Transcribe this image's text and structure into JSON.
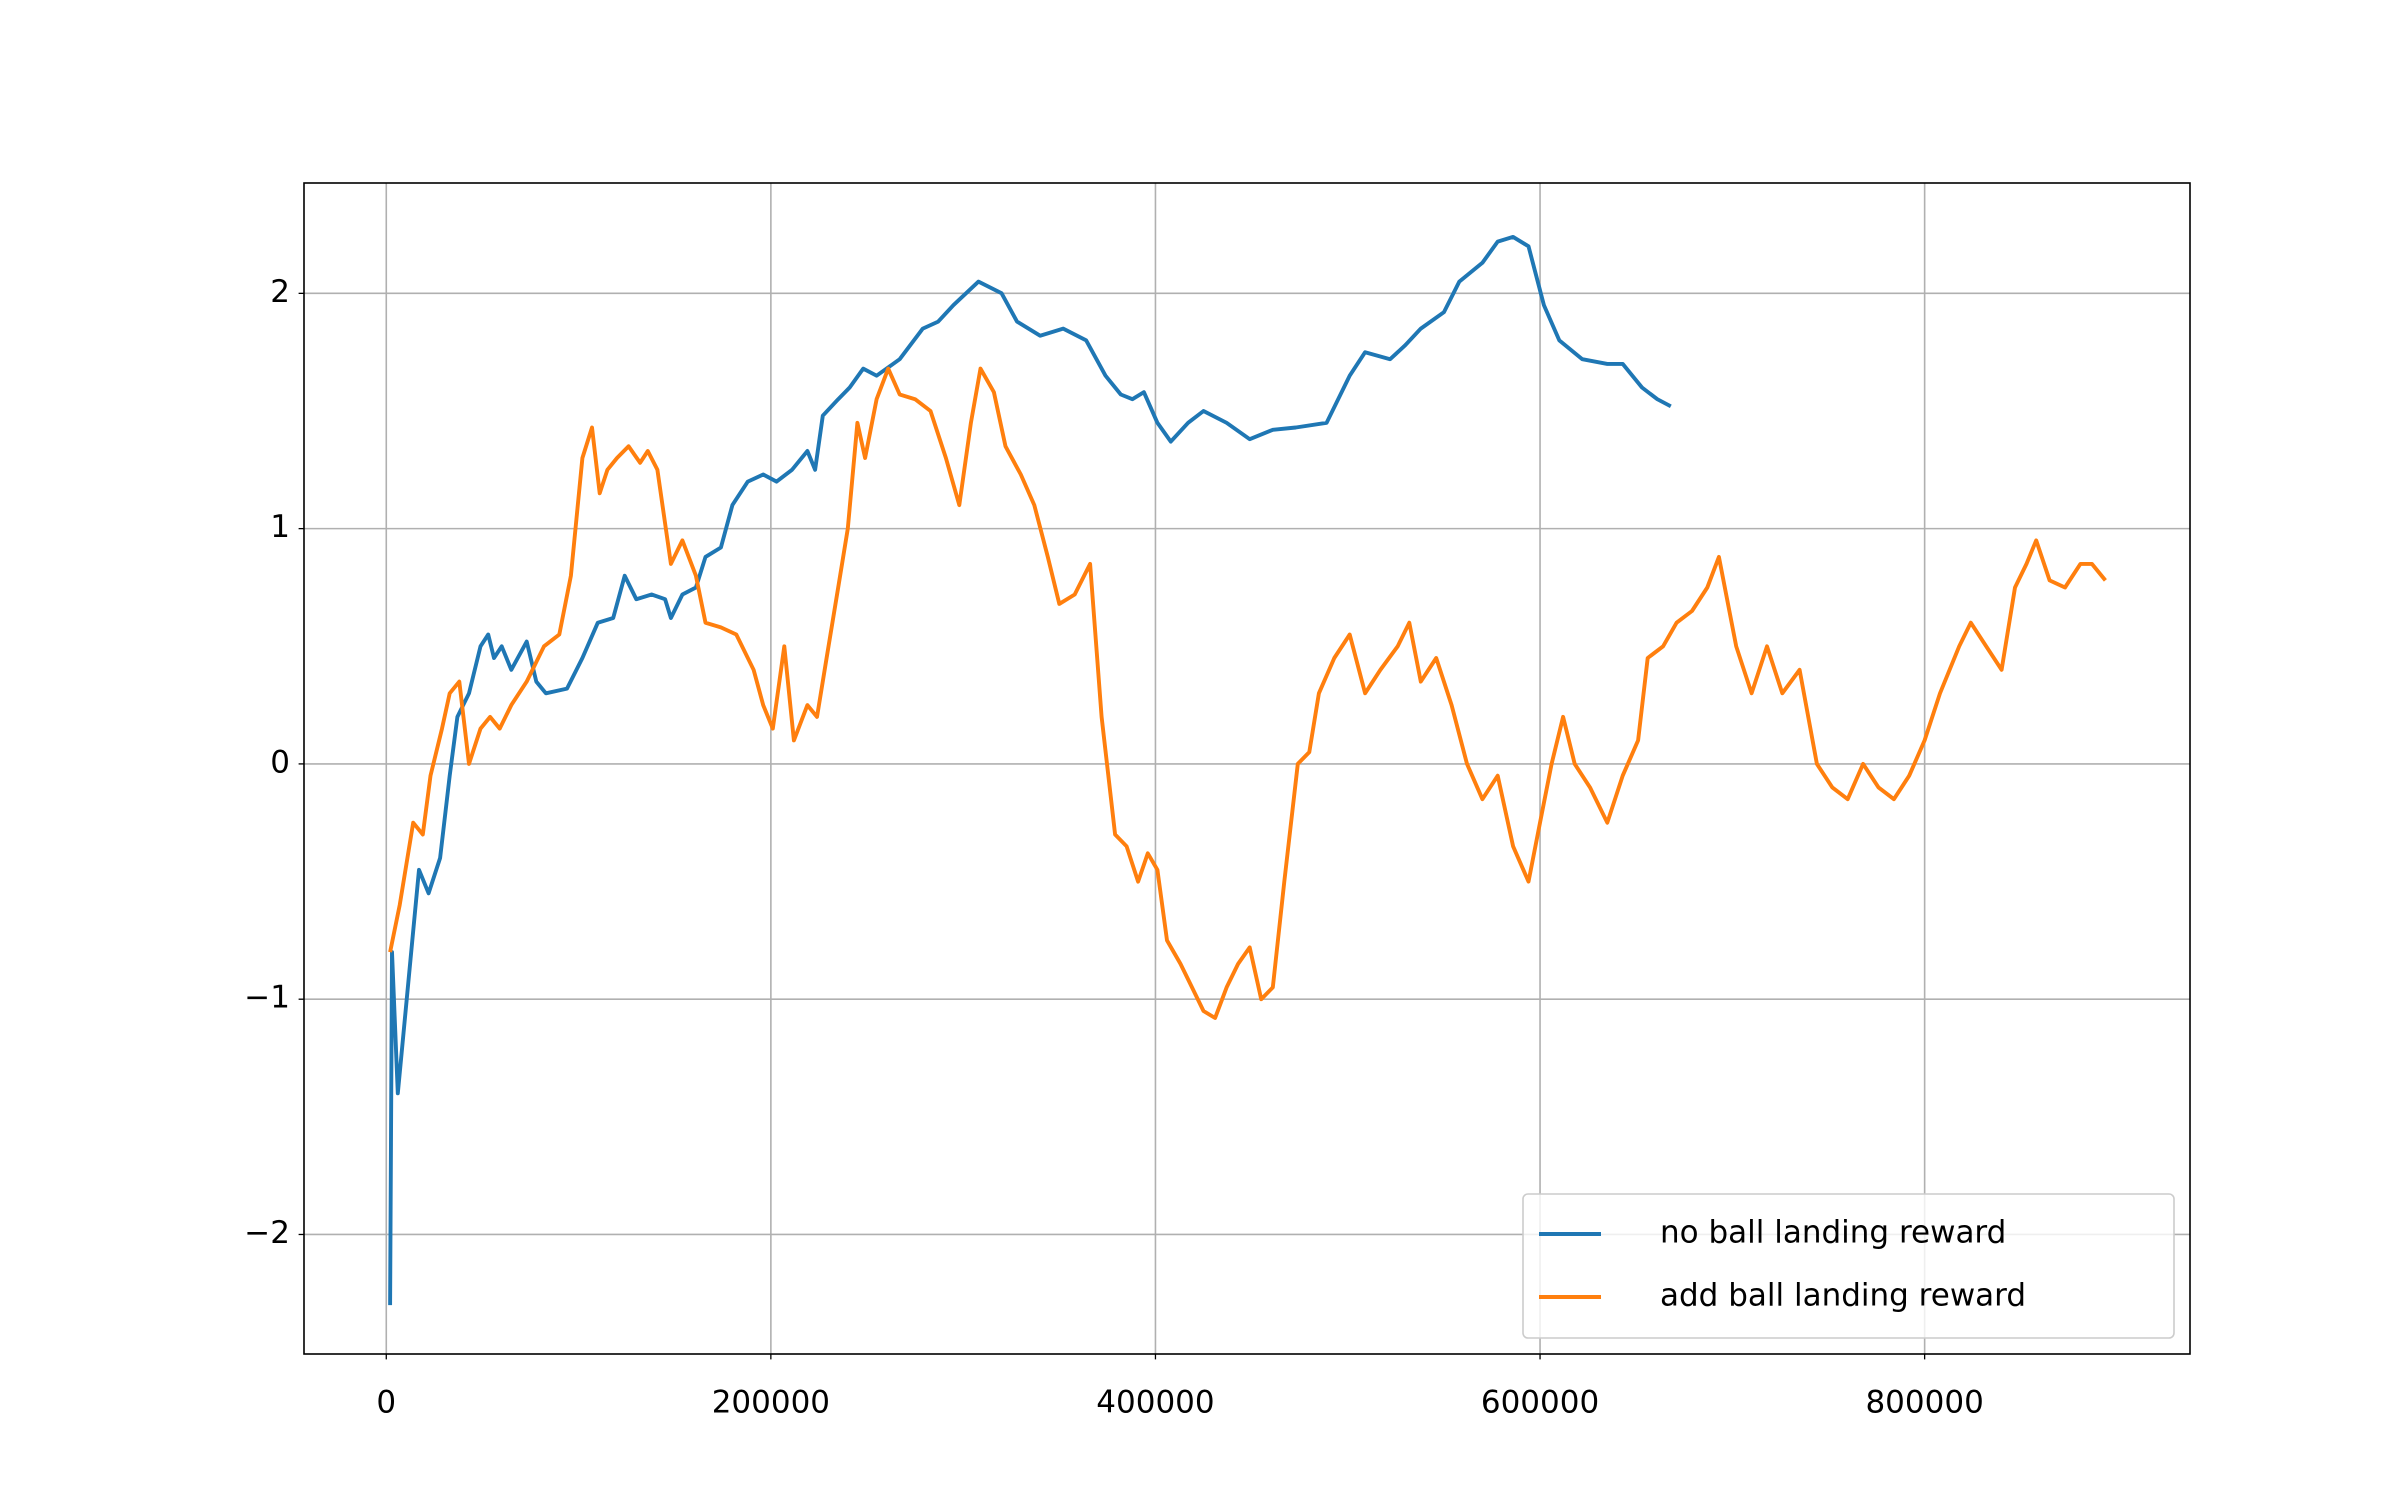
{
  "chart_data": {
    "type": "line",
    "xlim": [
      -42786,
      938000
    ],
    "ylim": [
      -2.508,
      2.469
    ],
    "xticks": [
      0,
      200000,
      400000,
      600000,
      800000
    ],
    "yticks": [
      {
        "value": -2,
        "label": "−2"
      },
      {
        "value": -1,
        "label": "−1"
      },
      0,
      1,
      2
    ],
    "grid": true,
    "legend": "lower right",
    "series": [
      {
        "name": "no ball landing reward",
        "color": "#1f77b4",
        "x": [
          2000,
          3000,
          6000,
          17000,
          22000,
          28000,
          33000,
          37000,
          43000,
          49000,
          53000,
          56000,
          60000,
          65000,
          73000,
          78000,
          83000,
          94000,
          102000,
          110000,
          118000,
          124000,
          130000,
          138000,
          145000,
          148000,
          154000,
          161000,
          166000,
          174000,
          180000,
          188000,
          196000,
          203000,
          211000,
          219000,
          223000,
          227000,
          235000,
          241000,
          248000,
          255000,
          267000,
          279000,
          287000,
          295000,
          308000,
          320000,
          328000,
          340000,
          352000,
          364000,
          374000,
          382000,
          388000,
          394000,
          401000,
          408000,
          417000,
          425000,
          437000,
          449000,
          461000,
          473000,
          489000,
          501000,
          509000,
          522000,
          530000,
          538000,
          550000,
          558000,
          570000,
          578000,
          586000,
          594000,
          602000,
          610000,
          622000,
          635000,
          643000,
          653000,
          661000,
          668000
        ],
        "values": [
          -2.3,
          -0.8,
          -1.4,
          -0.45,
          -0.55,
          -0.4,
          -0.05,
          0.2,
          0.3,
          0.5,
          0.55,
          0.45,
          0.5,
          0.4,
          0.52,
          0.35,
          0.3,
          0.32,
          0.45,
          0.6,
          0.62,
          0.8,
          0.7,
          0.72,
          0.7,
          0.62,
          0.72,
          0.75,
          0.88,
          0.92,
          1.1,
          1.2,
          1.23,
          1.2,
          1.25,
          1.33,
          1.25,
          1.48,
          1.55,
          1.6,
          1.68,
          1.65,
          1.72,
          1.85,
          1.88,
          1.95,
          2.05,
          2.0,
          1.88,
          1.82,
          1.85,
          1.8,
          1.65,
          1.57,
          1.55,
          1.58,
          1.45,
          1.37,
          1.45,
          1.5,
          1.45,
          1.38,
          1.42,
          1.43,
          1.45,
          1.65,
          1.75,
          1.72,
          1.78,
          1.85,
          1.92,
          2.05,
          2.13,
          2.22,
          2.24,
          2.2,
          1.95,
          1.8,
          1.72,
          1.7,
          1.7,
          1.6,
          1.55,
          1.52
        ]
      },
      {
        "name": "add ball landing reward",
        "color": "#ff7f0e",
        "x": [
          2000,
          7000,
          14000,
          19000,
          23000,
          29000,
          33000,
          38000,
          43000,
          49000,
          54000,
          59000,
          65000,
          73000,
          82000,
          90000,
          96000,
          102000,
          107000,
          111000,
          115000,
          120000,
          126000,
          132000,
          136000,
          141000,
          148000,
          154000,
          161000,
          166000,
          174000,
          182000,
          191000,
          196000,
          201000,
          207000,
          212000,
          219000,
          224000,
          229000,
          235000,
          240000,
          245000,
          249000,
          255000,
          261000,
          267000,
          275000,
          283000,
          291000,
          298000,
          304000,
          309000,
          316000,
          322000,
          330000,
          337000,
          344000,
          350000,
          358000,
          366000,
          372000,
          379000,
          385000,
          391000,
          396000,
          401000,
          406000,
          413000,
          419000,
          425000,
          431000,
          437000,
          443000,
          449000,
          455000,
          461000,
          467000,
          474000,
          480000,
          485000,
          493000,
          501000,
          509000,
          517000,
          526000,
          532000,
          538000,
          546000,
          554000,
          562000,
          570000,
          578000,
          586000,
          594000,
          600000,
          606000,
          612000,
          618000,
          626000,
          635000,
          643000,
          651000,
          656000,
          664000,
          671000,
          679000,
          687000,
          693000,
          702000,
          710000,
          718000,
          726000,
          735000,
          744000,
          752000,
          760000,
          768000,
          776000,
          784000,
          792000,
          800000,
          808000,
          818000,
          824000,
          832000,
          840000,
          847000,
          853000,
          858000,
          865000,
          873000,
          881000,
          887000,
          894000
        ],
        "values": [
          -0.8,
          -0.6,
          -0.25,
          -0.3,
          -0.05,
          0.15,
          0.3,
          0.35,
          0.0,
          0.15,
          0.2,
          0.15,
          0.25,
          0.35,
          0.5,
          0.55,
          0.8,
          1.3,
          1.43,
          1.15,
          1.25,
          1.3,
          1.35,
          1.28,
          1.33,
          1.25,
          0.85,
          0.95,
          0.8,
          0.6,
          0.58,
          0.55,
          0.4,
          0.25,
          0.15,
          0.5,
          0.1,
          0.25,
          0.2,
          0.45,
          0.75,
          1.0,
          1.45,
          1.3,
          1.55,
          1.68,
          1.57,
          1.55,
          1.5,
          1.3,
          1.1,
          1.45,
          1.68,
          1.58,
          1.35,
          1.23,
          1.1,
          0.88,
          0.68,
          0.72,
          0.85,
          0.2,
          -0.3,
          -0.35,
          -0.5,
          -0.38,
          -0.45,
          -0.75,
          -0.85,
          -0.95,
          -1.05,
          -1.08,
          -0.95,
          -0.85,
          -0.78,
          -1.0,
          -0.95,
          -0.5,
          0.0,
          0.05,
          0.3,
          0.45,
          0.55,
          0.3,
          0.4,
          0.5,
          0.6,
          0.35,
          0.45,
          0.25,
          0.0,
          -0.15,
          -0.05,
          -0.35,
          -0.5,
          -0.25,
          0.0,
          0.2,
          0.0,
          -0.1,
          -0.25,
          -0.05,
          0.1,
          0.45,
          0.5,
          0.6,
          0.65,
          0.75,
          0.88,
          0.5,
          0.3,
          0.5,
          0.3,
          0.4,
          0.0,
          -0.1,
          -0.15,
          0.0,
          -0.1,
          -0.15,
          -0.05,
          0.1,
          0.3,
          0.5,
          0.6,
          0.5,
          0.4,
          0.75,
          0.85,
          0.95,
          0.78,
          0.75,
          0.85,
          0.85,
          0.78
        ]
      }
    ]
  }
}
